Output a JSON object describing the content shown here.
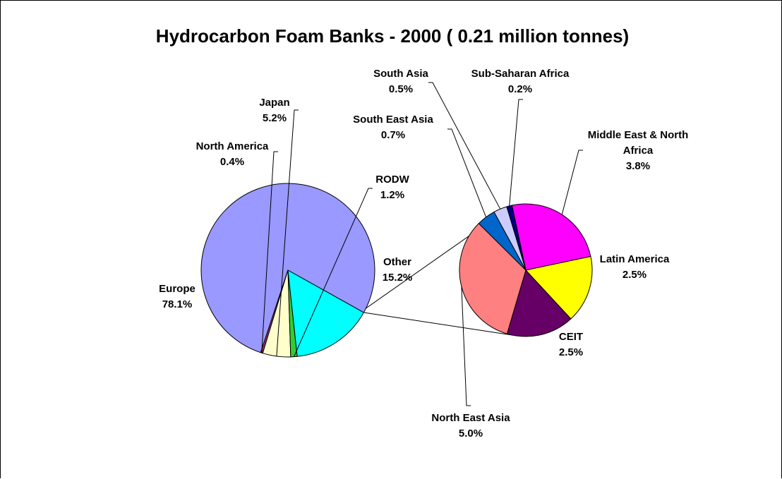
{
  "chart_data": {
    "type": "bar-of-pie",
    "title": "Hydrocarbon Foam Banks - 2000 ( 0.21 million tonnes)",
    "main_pie": {
      "slices": [
        {
          "name": "Europe",
          "value": 78.1,
          "label": "78.1%",
          "color": "#9999FF"
        },
        {
          "name": "North America",
          "value": 0.4,
          "label": "0.4%",
          "color": "#993366"
        },
        {
          "name": "Japan",
          "value": 5.2,
          "label": "5.2%",
          "color": "#FFFFCC"
        },
        {
          "name": "RODW",
          "value": 1.2,
          "label": "1.2%",
          "color": "#33CC33"
        },
        {
          "name": "Other",
          "value": 15.2,
          "label": "15.2%",
          "color": "#00FFFF"
        }
      ]
    },
    "secondary_pie": {
      "source": "Other",
      "slices": [
        {
          "name": "Middle East & North Africa",
          "value": 3.8,
          "label": "3.8%",
          "color": "#FF00FF"
        },
        {
          "name": "Latin America",
          "value": 2.5,
          "label": "2.5%",
          "color": "#FFFF00"
        },
        {
          "name": "CEIT",
          "value": 2.5,
          "label": "2.5%",
          "color": "#660066"
        },
        {
          "name": "North East Asia",
          "value": 5.0,
          "label": "5.0%",
          "color": "#FF8080"
        },
        {
          "name": "South East Asia",
          "value": 0.7,
          "label": "0.7%",
          "color": "#0066CC"
        },
        {
          "name": "South Asia",
          "value": 0.5,
          "label": "0.5%",
          "color": "#CCCCFF"
        },
        {
          "name": "Sub-Saharan Africa",
          "value": 0.2,
          "label": "0.2%",
          "color": "#000080"
        }
      ]
    }
  }
}
